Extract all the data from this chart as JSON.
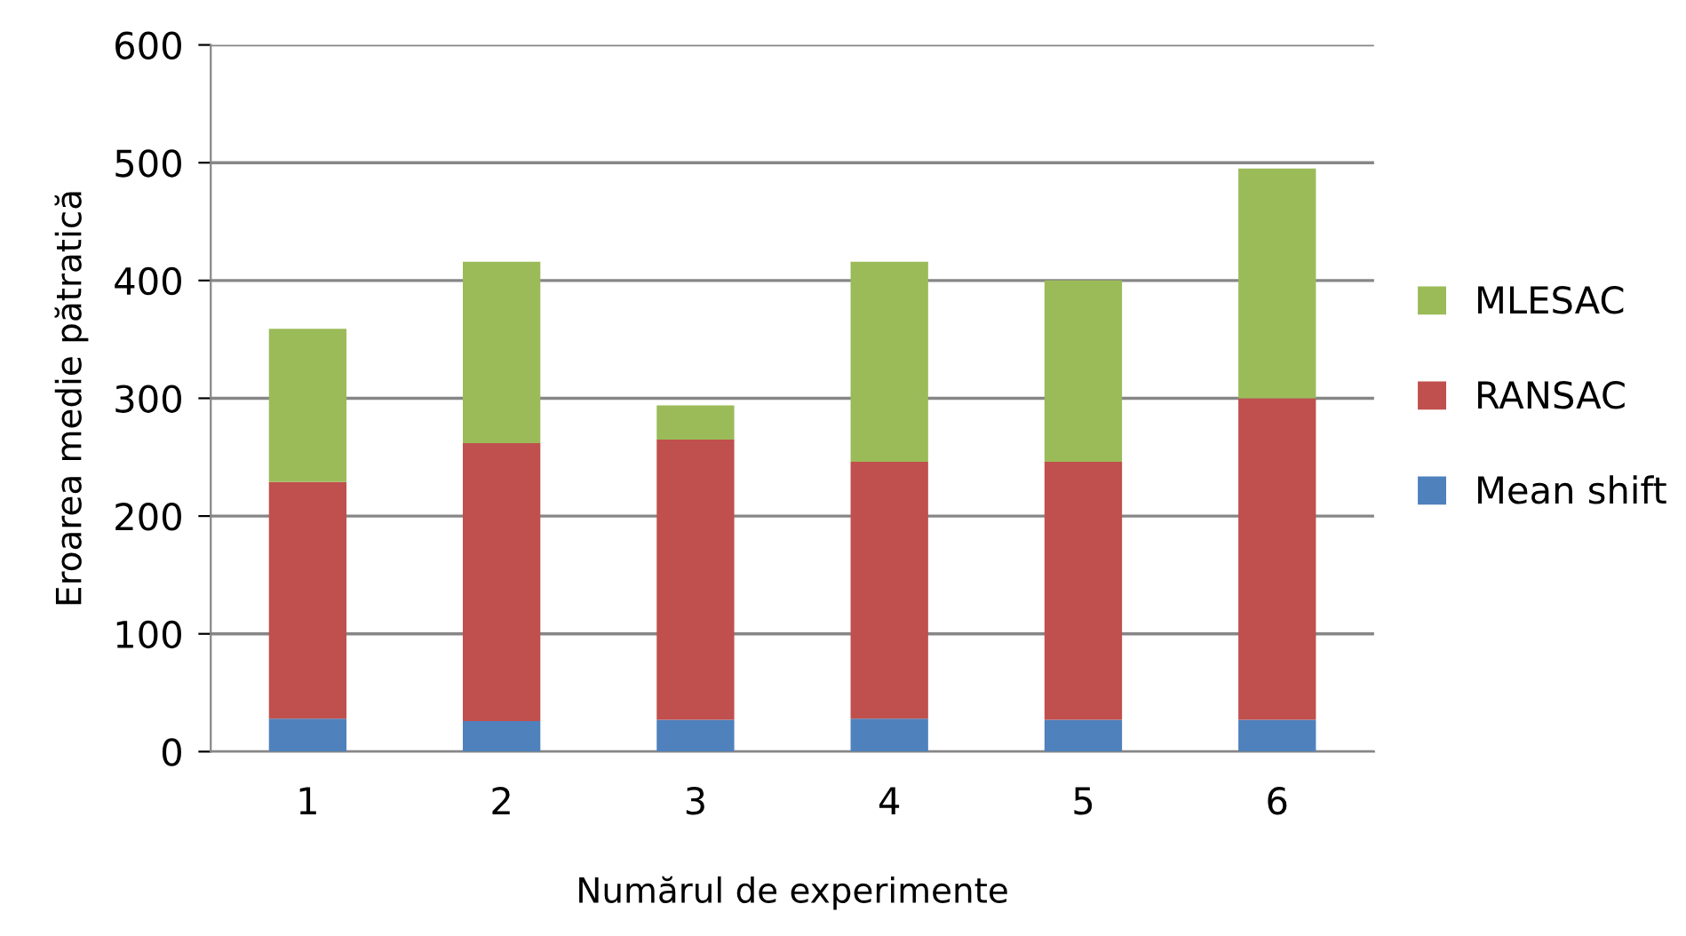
{
  "chart_data": {
    "type": "bar",
    "stacked": true,
    "xlabel": "Numărul de experimente",
    "ylabel": "Eroarea medie pătratică",
    "categories": [
      "1",
      "2",
      "3",
      "4",
      "5",
      "6"
    ],
    "series": [
      {
        "name": "Mean shift",
        "color": "#4f81bd",
        "values": [
          28,
          26,
          27,
          28,
          27,
          27
        ]
      },
      {
        "name": "RANSAC",
        "color": "#c0504d",
        "values": [
          201,
          236,
          238,
          218,
          219,
          273
        ]
      },
      {
        "name": "MLESAC",
        "color": "#9bbb59",
        "values": [
          130,
          154,
          29,
          170,
          154,
          195
        ]
      }
    ],
    "ylim": [
      0,
      600
    ],
    "yticks": [
      0,
      100,
      200,
      300,
      400,
      500,
      600
    ],
    "grid": "y",
    "legend": "right"
  }
}
